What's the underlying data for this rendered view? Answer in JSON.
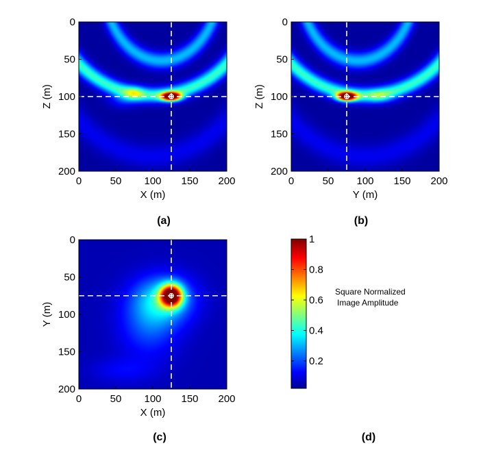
{
  "panels": [
    {
      "id": "a",
      "caption": "(a)",
      "xlabel": "X (m)",
      "ylabel": "Z (m)",
      "xticks": [
        0,
        50,
        100,
        150,
        200
      ],
      "yticks": [
        0,
        50,
        100,
        150,
        200
      ],
      "xlim": [
        0,
        200
      ],
      "ylim": [
        0,
        200
      ],
      "crosshair": {
        "x": 125,
        "y": 100
      },
      "field": {
        "background": 0.03,
        "blobs": [
          {
            "x": 125,
            "y": 100,
            "sx": 9,
            "sy": 4,
            "a": 1.0
          },
          {
            "x": 75,
            "y": 95,
            "sx": 9,
            "sy": 6,
            "a": 0.2
          },
          {
            "x": 60,
            "y": 105,
            "sx": 14,
            "sy": 7,
            "a": 0.12
          }
        ],
        "arcs": [
          {
            "cx": 100,
            "cy": -30,
            "rx": 135,
            "ry": 128,
            "w": 7,
            "a": 0.4,
            "t0": 0.2,
            "t1": 2.95
          },
          {
            "cx": 112,
            "cy": -50,
            "rx": 78,
            "ry": 102,
            "w": 6,
            "a": 0.28,
            "t0": 0.3,
            "t1": 2.84
          },
          {
            "cx": 100,
            "cy": -10,
            "rx": 150,
            "ry": 190,
            "w": 9,
            "a": 0.08,
            "t0": 0.25,
            "t1": 2.9
          }
        ]
      }
    },
    {
      "id": "b",
      "caption": "(b)",
      "xlabel": "Y (m)",
      "ylabel": "Z (m)",
      "xticks": [
        0,
        50,
        100,
        150,
        200
      ],
      "yticks": [
        0,
        50,
        100,
        150,
        200
      ],
      "xlim": [
        0,
        200
      ],
      "ylim": [
        0,
        200
      ],
      "crosshair": {
        "x": 75,
        "y": 100
      },
      "field": {
        "background": 0.03,
        "blobs": [
          {
            "x": 75,
            "y": 100,
            "sx": 9,
            "sy": 4,
            "a": 1.0
          },
          {
            "x": 120,
            "y": 100,
            "sx": 12,
            "sy": 6,
            "a": 0.15
          }
        ],
        "arcs": [
          {
            "cx": 100,
            "cy": -30,
            "rx": 135,
            "ry": 128,
            "w": 7,
            "a": 0.4,
            "t0": 0.2,
            "t1": 2.95
          },
          {
            "cx": 90,
            "cy": -50,
            "rx": 78,
            "ry": 102,
            "w": 6,
            "a": 0.28,
            "t0": 0.3,
            "t1": 2.84
          },
          {
            "cx": 100,
            "cy": -10,
            "rx": 150,
            "ry": 190,
            "w": 9,
            "a": 0.08,
            "t0": 0.25,
            "t1": 2.9
          }
        ]
      }
    },
    {
      "id": "c",
      "caption": "(c)",
      "xlabel": "X (m)",
      "ylabel": "Y (m)",
      "xticks": [
        0,
        50,
        100,
        150,
        200
      ],
      "yticks": [
        0,
        50,
        100,
        150,
        200
      ],
      "xlim": [
        0,
        200
      ],
      "ylim": [
        0,
        200
      ],
      "crosshair": {
        "x": 125,
        "y": 75
      },
      "field": {
        "background": 0.05,
        "blobs": [
          {
            "x": 125,
            "y": 75,
            "sx": 10,
            "sy": 10,
            "a": 1.0
          },
          {
            "x": 115,
            "y": 80,
            "sx": 28,
            "sy": 22,
            "a": 0.3
          },
          {
            "x": 95,
            "y": 115,
            "sx": 28,
            "sy": 30,
            "a": 0.15
          },
          {
            "x": 60,
            "y": 175,
            "sx": 30,
            "sy": 12,
            "a": 0.07
          }
        ],
        "arcs": []
      }
    }
  ],
  "colorbar": {
    "caption": "(d)",
    "title_lines": [
      "Square Normalized",
      "Image Amplitude"
    ],
    "ticks": [
      0.2,
      0.4,
      0.6,
      0.8,
      1
    ],
    "tick_labels": [
      "0.2",
      "0.4",
      "0.6",
      "0.8",
      "1"
    ],
    "range": [
      0.02,
      1
    ],
    "colormap": "jet"
  },
  "chart_data": [
    {
      "type": "heatmap",
      "title": "",
      "caption": "(a)",
      "xlabel": "X (m)",
      "ylabel": "Z (m)",
      "xlim": [
        0,
        200
      ],
      "ylim": [
        0,
        200
      ],
      "y_axis": "reversed (0 at top)",
      "colormap": "jet",
      "peak": {
        "x": 125,
        "z": 100,
        "value": 1
      },
      "crosshair": {
        "x": 125,
        "z": 100,
        "style": "dashed white"
      }
    },
    {
      "type": "heatmap",
      "title": "",
      "caption": "(b)",
      "xlabel": "Y (m)",
      "ylabel": "Z (m)",
      "xlim": [
        0,
        200
      ],
      "ylim": [
        0,
        200
      ],
      "y_axis": "reversed (0 at top)",
      "colormap": "jet",
      "peak": {
        "y": 75,
        "z": 100,
        "value": 1
      },
      "crosshair": {
        "y": 75,
        "z": 100,
        "style": "dashed white"
      }
    },
    {
      "type": "heatmap",
      "title": "",
      "caption": "(c)",
      "xlabel": "X (m)",
      "ylabel": "Y (m)",
      "xlim": [
        0,
        200
      ],
      "ylim": [
        0,
        200
      ],
      "y_axis": "reversed (0 at top)",
      "colormap": "jet",
      "peak": {
        "x": 125,
        "y": 75,
        "value": 1
      },
      "crosshair": {
        "x": 125,
        "y": 75,
        "style": "dashed white"
      }
    },
    {
      "type": "colorbar",
      "caption": "(d)",
      "label": "Square Normalized Image Amplitude",
      "range": [
        0,
        1
      ],
      "ticks": [
        0.2,
        0.4,
        0.6,
        0.8,
        1
      ],
      "colormap": "jet"
    }
  ]
}
